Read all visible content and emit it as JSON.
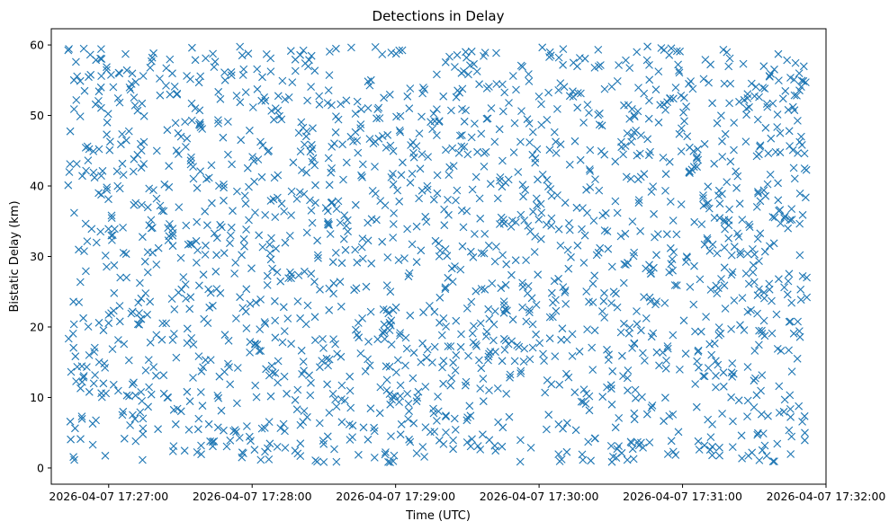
{
  "chart_data": {
    "type": "scatter",
    "title": "Detections in Delay",
    "xlabel": "Time (UTC)",
    "ylabel": "Bistatic Delay (km)",
    "x_start": "2026-04-07 17:26:43",
    "x_end": "2026-04-07 17:31:52",
    "xlim": [
      "2026-04-07 17:26:36",
      "2026-04-07 17:32:00"
    ],
    "x_ticks": [
      "2026-04-07 17:27:00",
      "2026-04-07 17:28:00",
      "2026-04-07 17:29:00",
      "2026-04-07 17:30:00",
      "2026-04-07 17:31:00",
      "2026-04-07 17:32:00"
    ],
    "ylim": [
      -2.3,
      62.3
    ],
    "y_ticks": [
      "0",
      "10",
      "20",
      "30",
      "40",
      "50",
      "60"
    ],
    "y_range": [
      0.8,
      59.8
    ],
    "point_count": 1900,
    "marker": "x",
    "series": [
      {
        "name": "",
        "color": "#1f77b4"
      }
    ],
    "grid": false,
    "legend": "none"
  }
}
